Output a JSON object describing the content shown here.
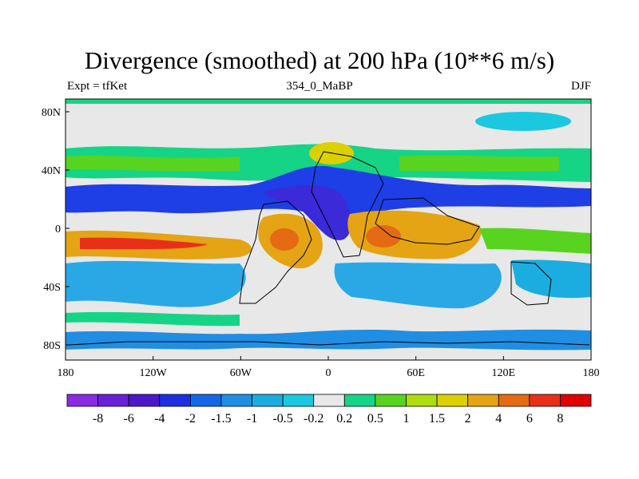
{
  "header": {
    "title": "Divergence (smoothed) at 200 hPa (10**6 m/s)",
    "left": "Expt = tfKet",
    "center": "354_0_MaBP",
    "right": "DJF"
  },
  "axes": {
    "x_ticks": [
      "180",
      "120W",
      "60W",
      "0",
      "60E",
      "120E",
      "180"
    ],
    "y_ticks": [
      "80N",
      "40N",
      "0",
      "40S",
      "80S"
    ]
  },
  "colorbar": {
    "labels": [
      "-8",
      "-6",
      "-4",
      "-2",
      "-1.5",
      "-1",
      "-0.5",
      "-0.2",
      "0.2",
      "0.5",
      "1",
      "1.5",
      "2",
      "4",
      "6",
      "8"
    ],
    "colors": [
      "#8a2be2",
      "#6a1fd9",
      "#4b19c8",
      "#1e2fe0",
      "#1468e8",
      "#1f8ee3",
      "#1cade0",
      "#1cc8e0",
      "#e8e8e8",
      "#16d486",
      "#58d420",
      "#aedc10",
      "#dcd000",
      "#e4a414",
      "#e46a14",
      "#e83018",
      "#e00000"
    ]
  },
  "colors": {
    "strong_convergence": "#3a2ad8",
    "convergence": "#1e3fe6",
    "weak_convergence": "#2aa8e6",
    "neutral": "#e8e8e8",
    "weak_divergence": "#16d486",
    "divergence": "#58d420",
    "strong_divergence": "#e4a414",
    "max_divergence": "#e83018"
  }
}
